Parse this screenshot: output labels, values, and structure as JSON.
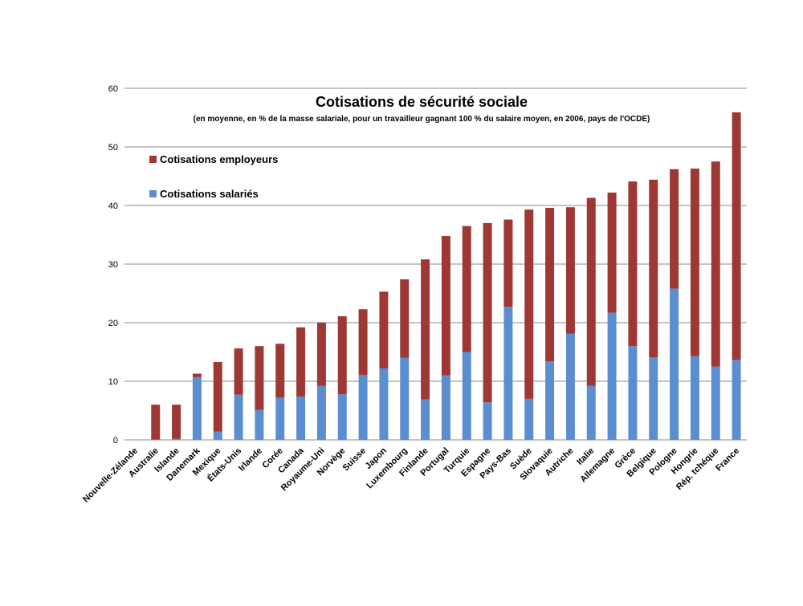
{
  "chart_data": {
    "type": "bar",
    "stacked": true,
    "title": "Cotisations de sécurité sociale",
    "subtitle": "(en moyenne, en % de la masse salariale, pour un travailleur gagnant 100 % du salaire moyen, en 2006, pays de l'OCDE)",
    "xlabel": "",
    "ylabel": "",
    "ylim": [
      0,
      60
    ],
    "yticks": [
      0,
      10,
      20,
      30,
      40,
      50,
      60
    ],
    "grid": true,
    "legend_position": "top-left",
    "categories": [
      "Nouvelle-Zélande",
      "Australie",
      "Islande",
      "Danemark",
      "Mexique",
      "États-Unis",
      "Irlande",
      "Corée",
      "Canada",
      "Royaume-Uni",
      "Norvège",
      "Suisse",
      "Japon",
      "Luxembourg",
      "Finlande",
      "Portugal",
      "Turquie",
      "Espagne",
      "Pays-Bas",
      "Suède",
      "Slovaquie",
      "Autriche",
      "Italie",
      "Allemagne",
      "Grèce",
      "Belgique",
      "Pologne",
      "Hongrie",
      "Rép. tchéque",
      "France"
    ],
    "series": [
      {
        "name": "Cotisations salariés",
        "color": "#5B8ED1",
        "values": [
          0,
          0,
          0.2,
          10.7,
          1.4,
          7.7,
          5.1,
          7.2,
          7.4,
          9.2,
          7.8,
          11.1,
          12.2,
          14.0,
          6.9,
          11.0,
          15.0,
          6.4,
          22.7,
          7.0,
          13.4,
          18.1,
          9.2,
          21.7,
          16.0,
          14.1,
          25.8,
          14.3,
          12.5,
          13.6
        ]
      },
      {
        "name": "Cotisations employeurs",
        "color": "#9E3835",
        "values": [
          0,
          6.0,
          5.8,
          0.6,
          11.9,
          7.9,
          10.9,
          9.2,
          11.8,
          10.8,
          13.3,
          11.2,
          13.1,
          13.4,
          23.9,
          23.8,
          21.5,
          30.6,
          14.9,
          32.3,
          26.2,
          21.6,
          32.1,
          20.5,
          28.1,
          30.3,
          20.4,
          32.0,
          35.0,
          42.3
        ]
      }
    ]
  }
}
